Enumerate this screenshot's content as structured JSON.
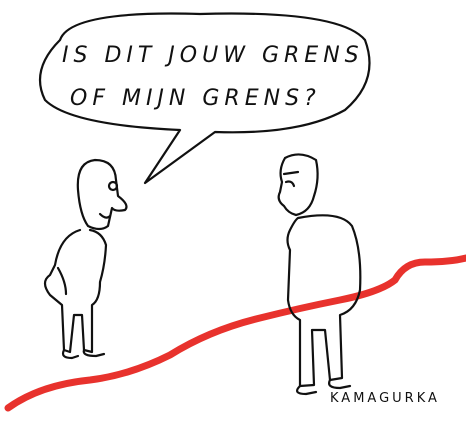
{
  "speech_bubble": {
    "lines": [
      "IS DIT JOUW GRENS",
      "OF MIJN GRENS?"
    ]
  },
  "signature": "KAMAGURKA"
}
